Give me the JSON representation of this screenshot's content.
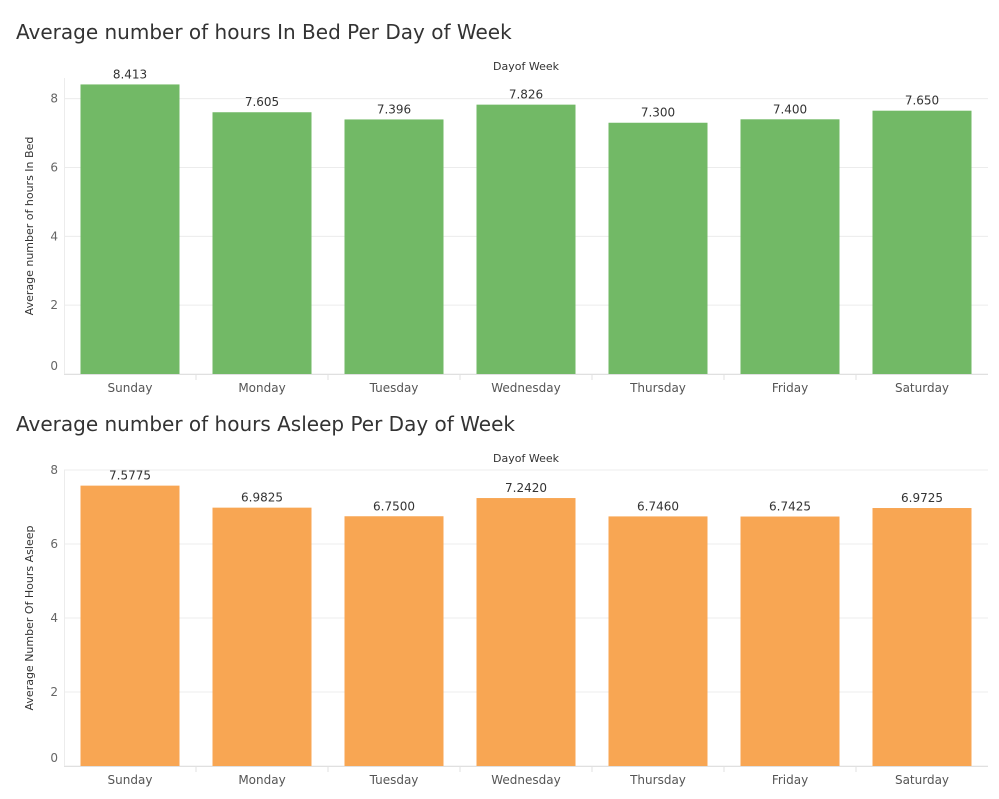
{
  "charts": [
    {
      "title": "Average number of hours In Bed Per Day of Week",
      "color": "#72b966"
    },
    {
      "title": "Average number of hours Asleep Per Day of Week",
      "color": "#f8a653"
    }
  ],
  "chart_data": [
    {
      "type": "bar",
      "title": "Average number of hours In Bed Per Day of Week",
      "xlabel": "Dayof Week",
      "ylabel": "Average number of hours In Bed",
      "categories": [
        "Sunday",
        "Monday",
        "Tuesday",
        "Wednesday",
        "Thursday",
        "Friday",
        "Saturday"
      ],
      "values": [
        8.413,
        7.605,
        7.396,
        7.826,
        7.3,
        7.4,
        7.65
      ],
      "value_labels": [
        "8.413",
        "7.605",
        "7.396",
        "7.826",
        "7.300",
        "7.400",
        "7.650"
      ],
      "yticks": [
        "0",
        "2",
        "4",
        "6",
        "8"
      ],
      "ylim": [
        0,
        8.6
      ],
      "grid": true,
      "color": "#72b966"
    },
    {
      "type": "bar",
      "title": "Average number of hours Asleep Per Day of Week",
      "xlabel": "Dayof Week",
      "ylabel": "Average Number Of Hours Asleep",
      "categories": [
        "Sunday",
        "Monday",
        "Tuesday",
        "Wednesday",
        "Thursday",
        "Friday",
        "Saturday"
      ],
      "values": [
        7.5775,
        6.9825,
        6.75,
        7.242,
        6.746,
        6.7425,
        6.9725
      ],
      "value_labels": [
        "7.5775",
        "6.9825",
        "6.7500",
        "7.2420",
        "6.7460",
        "6.7425",
        "6.9725"
      ],
      "yticks": [
        "0",
        "2",
        "4",
        "6",
        "8"
      ],
      "ylim": [
        0,
        8
      ],
      "grid": true,
      "color": "#f8a653"
    }
  ]
}
